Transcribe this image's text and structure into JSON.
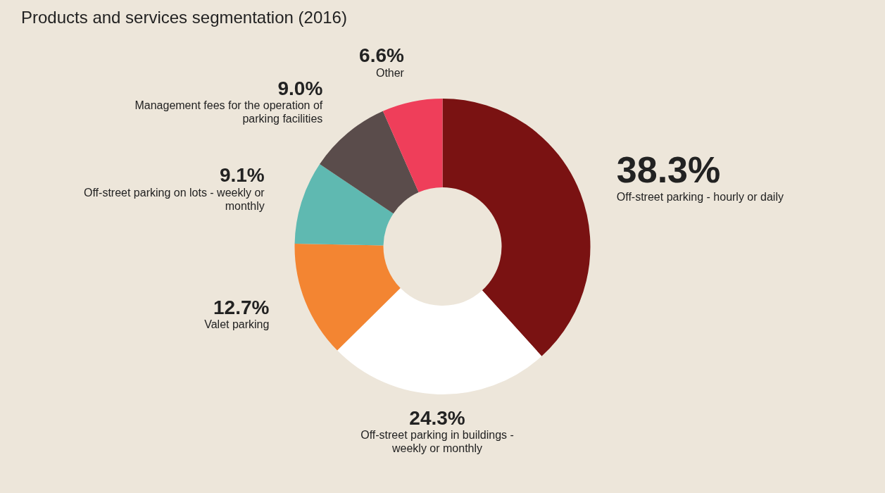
{
  "chart_data": {
    "type": "donut",
    "title": "Products and services segmentation (2016)",
    "categories": [
      "Off-street parking - hourly or daily",
      "Off-street parking in buildings - weekly or monthly",
      "Valet parking",
      "Off-street parking on lots - weekly or monthly",
      "Management fees for the operation of parking facilities",
      "Other"
    ],
    "values": [
      38.3,
      24.3,
      12.7,
      9.1,
      9.0,
      6.6
    ],
    "value_labels": [
      "38.3%",
      "24.3%",
      "12.7%",
      "9.1%",
      "9.0%",
      "6.6%"
    ],
    "colors": [
      "#7a1212",
      "#ffffff",
      "#f38532",
      "#5fb9b1",
      "#5a4c4b",
      "#ef3e5a"
    ]
  }
}
